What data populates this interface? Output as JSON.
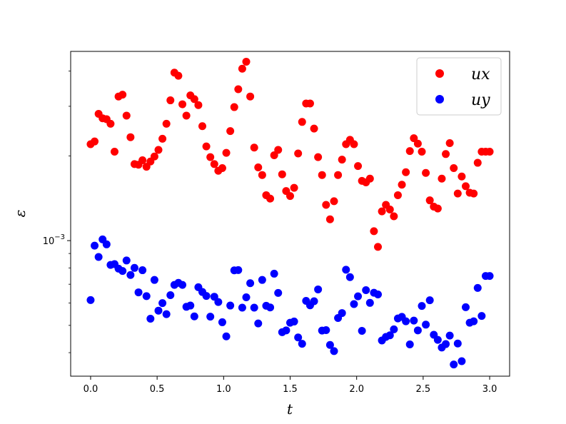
{
  "chart_data": {
    "type": "scatter",
    "title": "",
    "xlabel": "t",
    "ylabel": "ε",
    "xlim": [
      -0.15,
      3.15
    ],
    "ylim": [
      0.00033,
      0.0047
    ],
    "yscale": "log",
    "grid": false,
    "legend_position": "top-right",
    "x_ticks": [
      {
        "value": 0.0,
        "label": "0.0"
      },
      {
        "value": 0.5,
        "label": "0.5"
      },
      {
        "value": 1.0,
        "label": "1.0"
      },
      {
        "value": 1.5,
        "label": "1.5"
      },
      {
        "value": 2.0,
        "label": "2.0"
      },
      {
        "value": 2.5,
        "label": "2.5"
      },
      {
        "value": 3.0,
        "label": "3.0"
      }
    ],
    "y_ticks": [
      {
        "value": 0.001,
        "base": "10",
        "exponent": "−3"
      }
    ],
    "series": [
      {
        "name": "ux",
        "color": "#ff0000",
        "x": [
          0.0,
          0.03,
          0.06,
          0.09,
          0.12,
          0.15,
          0.18,
          0.21,
          0.24,
          0.27,
          0.3,
          0.33,
          0.36,
          0.39,
          0.42,
          0.45,
          0.48,
          0.51,
          0.54,
          0.57,
          0.6,
          0.63,
          0.66,
          0.69,
          0.72,
          0.75,
          0.78,
          0.81,
          0.84,
          0.87,
          0.9,
          0.93,
          0.96,
          0.99,
          1.02,
          1.05,
          1.08,
          1.11,
          1.14,
          1.17,
          1.2,
          1.23,
          1.26,
          1.29,
          1.32,
          1.35,
          1.38,
          1.41,
          1.44,
          1.47,
          1.5,
          1.53,
          1.56,
          1.59,
          1.62,
          1.65,
          1.68,
          1.71,
          1.74,
          1.77,
          1.8,
          1.83,
          1.86,
          1.89,
          1.92,
          1.95,
          1.98,
          2.01,
          2.04,
          2.07,
          2.1,
          2.13,
          2.16,
          2.19,
          2.22,
          2.25,
          2.28,
          2.31,
          2.34,
          2.37,
          2.4,
          2.43,
          2.46,
          2.49,
          2.52,
          2.55,
          2.58,
          2.61,
          2.64,
          2.67,
          2.7,
          2.73,
          2.76,
          2.79,
          2.82,
          2.85,
          2.88,
          2.91,
          2.94,
          2.97,
          3.0
        ],
        "y": [
          0.0022,
          0.00225,
          0.00282,
          0.00272,
          0.0027,
          0.0026,
          0.00207,
          0.00325,
          0.0033,
          0.00278,
          0.00233,
          0.00187,
          0.00186,
          0.00193,
          0.00183,
          0.00191,
          0.00199,
          0.0021,
          0.0023,
          0.0026,
          0.00315,
          0.00395,
          0.00385,
          0.00305,
          0.00278,
          0.00328,
          0.00318,
          0.00303,
          0.00255,
          0.00216,
          0.00198,
          0.00187,
          0.00177,
          0.00181,
          0.00205,
          0.00245,
          0.00298,
          0.00345,
          0.00408,
          0.00432,
          0.00325,
          0.00214,
          0.00182,
          0.00171,
          0.00145,
          0.00141,
          0.00201,
          0.0021,
          0.00172,
          0.0015,
          0.00144,
          0.00154,
          0.00204,
          0.00264,
          0.00307,
          0.00307,
          0.0025,
          0.00198,
          0.00171,
          0.00134,
          0.00119,
          0.00138,
          0.00171,
          0.00194,
          0.0022,
          0.00228,
          0.0022,
          0.00184,
          0.00163,
          0.00161,
          0.00166,
          0.00108,
          0.00095,
          0.00127,
          0.00134,
          0.00129,
          0.00122,
          0.00145,
          0.00158,
          0.00175,
          0.00208,
          0.00231,
          0.00221,
          0.00207,
          0.00174,
          0.00139,
          0.00132,
          0.0013,
          0.00166,
          0.00203,
          0.00222,
          0.00181,
          0.00147,
          0.00169,
          0.00156,
          0.00148,
          0.00147,
          0.00189,
          0.00207,
          0.00207,
          0.00207
        ]
      },
      {
        "name": "uy",
        "color": "#0000ff",
        "x": [
          0.0,
          0.03,
          0.06,
          0.09,
          0.12,
          0.15,
          0.18,
          0.21,
          0.24,
          0.27,
          0.3,
          0.33,
          0.36,
          0.39,
          0.42,
          0.45,
          0.48,
          0.51,
          0.54,
          0.57,
          0.6,
          0.63,
          0.66,
          0.69,
          0.72,
          0.75,
          0.78,
          0.81,
          0.84,
          0.87,
          0.9,
          0.93,
          0.96,
          0.99,
          1.02,
          1.05,
          1.08,
          1.11,
          1.14,
          1.17,
          1.2,
          1.23,
          1.26,
          1.29,
          1.32,
          1.35,
          1.38,
          1.41,
          1.44,
          1.47,
          1.5,
          1.53,
          1.56,
          1.59,
          1.62,
          1.65,
          1.68,
          1.71,
          1.74,
          1.77,
          1.8,
          1.83,
          1.86,
          1.89,
          1.92,
          1.95,
          1.98,
          2.01,
          2.04,
          2.07,
          2.1,
          2.13,
          2.16,
          2.19,
          2.22,
          2.25,
          2.28,
          2.31,
          2.34,
          2.37,
          2.4,
          2.43,
          2.46,
          2.49,
          2.52,
          2.55,
          2.58,
          2.61,
          2.64,
          2.67,
          2.7,
          2.73,
          2.76,
          2.79,
          2.82,
          2.85,
          2.88,
          2.91,
          2.94,
          2.97,
          3.0
        ],
        "y": [
          0.000615,
          0.00096,
          0.000875,
          0.00101,
          0.00097,
          0.00082,
          0.000825,
          0.000795,
          0.00078,
          0.00085,
          0.000755,
          0.0008,
          0.000655,
          0.000785,
          0.000635,
          0.000528,
          0.000725,
          0.000564,
          0.0006,
          0.000548,
          0.00064,
          0.000696,
          0.000708,
          0.000696,
          0.000582,
          0.000588,
          0.000538,
          0.000683,
          0.000657,
          0.000636,
          0.000537,
          0.000632,
          0.000605,
          0.000513,
          0.000457,
          0.000588,
          0.000784,
          0.000786,
          0.000578,
          0.000629,
          0.000706,
          0.000578,
          0.000508,
          0.000725,
          0.000587,
          0.000579,
          0.000763,
          0.000652,
          0.000473,
          0.00048,
          0.000511,
          0.000516,
          0.000453,
          0.00043,
          0.000611,
          0.000589,
          0.000609,
          0.000671,
          0.000479,
          0.000481,
          0.000426,
          0.000405,
          0.000531,
          0.000553,
          0.000788,
          0.000742,
          0.000595,
          0.000634,
          0.000478,
          0.000667,
          0.000601,
          0.000653,
          0.000644,
          0.000442,
          0.000455,
          0.000461,
          0.000484,
          0.000529,
          0.000536,
          0.000517,
          0.000428,
          0.00052,
          0.00048,
          0.000586,
          0.000503,
          0.000614,
          0.000463,
          0.000444,
          0.000417,
          0.000429,
          0.00046,
          0.000363,
          0.000431,
          0.000373,
          0.00058,
          0.000511,
          0.000517,
          0.000679,
          0.00054,
          0.000749,
          0.000749
        ]
      }
    ]
  }
}
